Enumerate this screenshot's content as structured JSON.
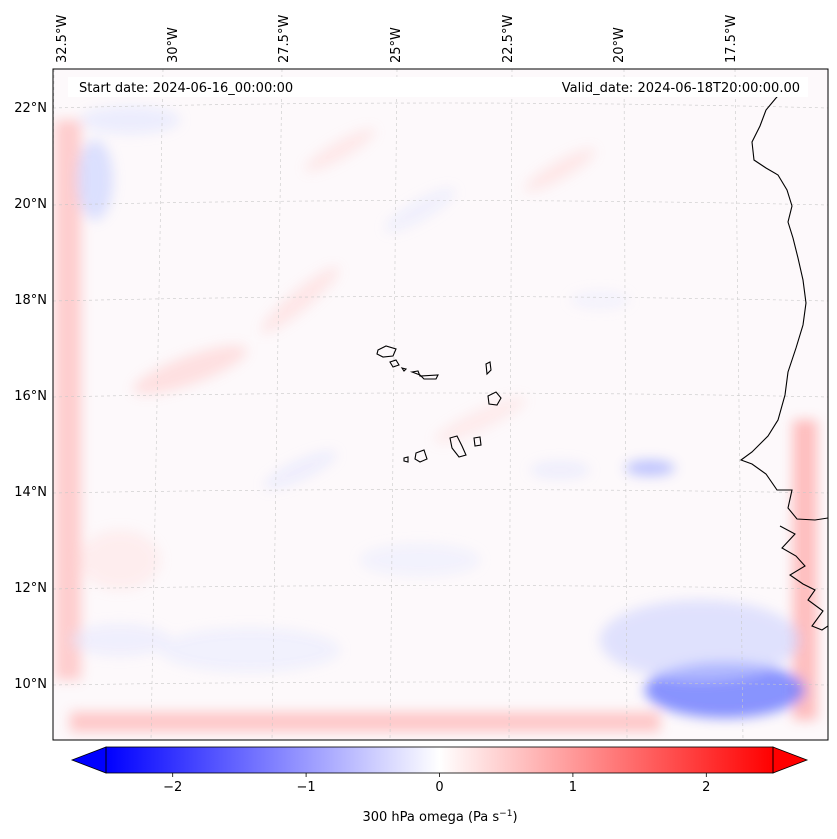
{
  "map": {
    "start_label": "Start date: 2024-06-16_00:00:00",
    "valid_label": "Valid_date: 2024-06-18T20:00:00.00",
    "lon_ticks": [
      "32.5°W",
      "30°W",
      "27.5°W",
      "25°W",
      "22.5°W",
      "20°W",
      "17.5°W"
    ],
    "lat_ticks": [
      "22°N",
      "20°N",
      "18°N",
      "16°N",
      "14°N",
      "12°N",
      "10°N"
    ]
  },
  "colorbar": {
    "label": "300 hPa omega (Pa s",
    "label_sup": "−1",
    "label_end": ")",
    "ticks": [
      "−2",
      "−1",
      "0",
      "1",
      "2"
    ],
    "values": [
      -2,
      -1,
      0,
      1,
      2
    ],
    "min": -2.5,
    "max": 2.5,
    "colors": {
      "low": "#0000ff",
      "mid": "#ffffff",
      "high": "#ff0000"
    }
  }
}
